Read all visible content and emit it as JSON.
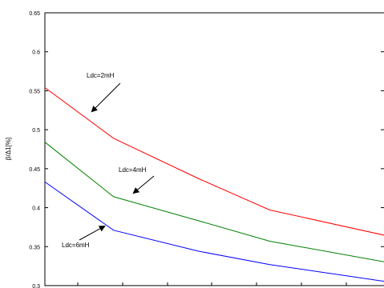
{
  "chart_data": {
    "type": "line",
    "title": "",
    "xlabel": "",
    "ylabel": "β/Δ1[%]",
    "xlim": [
      0,
      6
    ],
    "ylim": [
      0.3,
      0.65
    ],
    "y_ticks": [
      "0.65",
      "0.6",
      "0.55",
      "0.5",
      "0.45",
      "0.4",
      "0.35",
      "0.3"
    ],
    "x_ticks": 7,
    "grid": false,
    "x": [
      0,
      1,
      2,
      3,
      4,
      5,
      6
    ],
    "series": [
      {
        "name": "Ldc=2mH",
        "color": "#ff0000",
        "values": [
          0.554,
          0.489,
          0.437,
          0.397,
          0.364
        ],
        "x": [
          0,
          1.65,
          3.7,
          5.4,
          8.2
        ]
      },
      {
        "name": "Ldc=4mH",
        "color": "#008000",
        "values": [
          0.484,
          0.414,
          0.383,
          0.357,
          0.33
        ],
        "x": [
          0,
          1.65,
          3.7,
          5.4,
          8.2
        ]
      },
      {
        "name": "Ldc=6mH",
        "color": "#0000ff",
        "values": [
          0.433,
          0.371,
          0.344,
          0.327,
          0.305
        ],
        "x": [
          0,
          1.65,
          3.7,
          5.4,
          8.2
        ]
      }
    ],
    "annotations": [
      {
        "text": "Ldc=2mH",
        "series": 0,
        "at_x": 0.9
      },
      {
        "text": "Ldc=4mH",
        "series": 1,
        "at_x": 1.9
      },
      {
        "text": "Ldc=6mH",
        "series": 2,
        "at_x": 1.2
      }
    ]
  }
}
